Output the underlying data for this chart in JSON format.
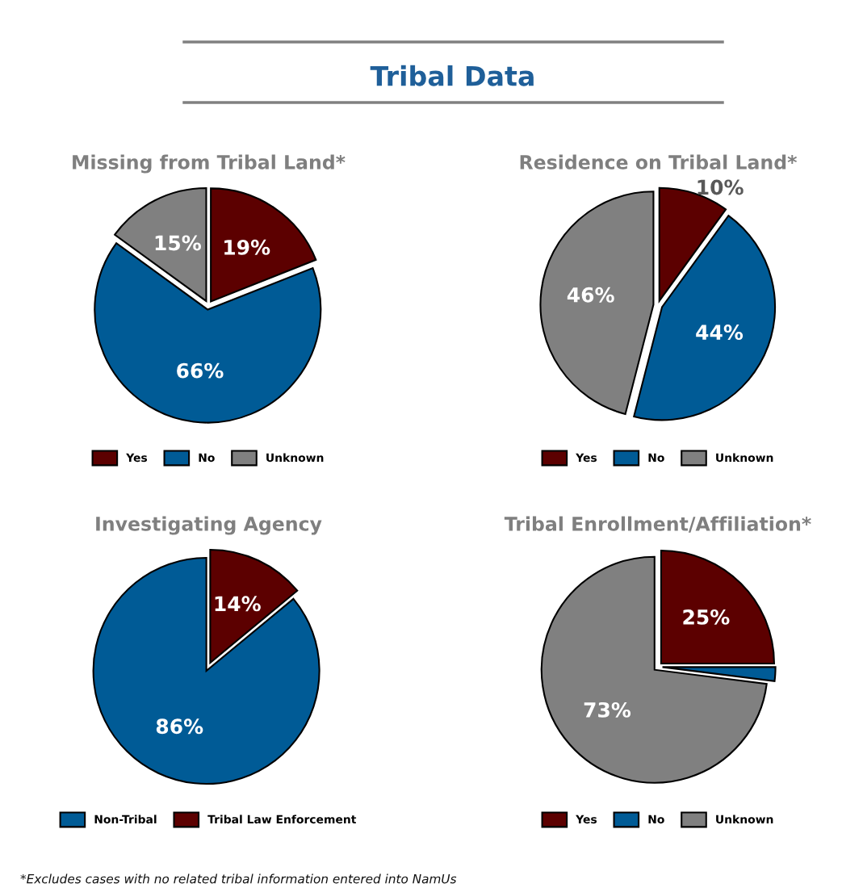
{
  "chart_data": [
    {
      "type": "other",
      "title": "Tribal Data",
      "annotations": [
        "*Excludes cases with no related tribal information entered into NamUs"
      ]
    },
    {
      "type": "pie",
      "title": "Missing from Tribal Land*",
      "categories": [
        "Yes",
        "No",
        "Unknown"
      ],
      "values": [
        19,
        66,
        15
      ],
      "colors": [
        "#5c0000",
        "#005b96",
        "#808080"
      ],
      "value_labels": [
        "19%",
        "66%",
        "15%"
      ],
      "legend": "bottom"
    },
    {
      "type": "pie",
      "title": "Residence on Tribal Land*",
      "categories": [
        "Yes",
        "No",
        "Unknown"
      ],
      "values": [
        10,
        44,
        46
      ],
      "colors": [
        "#5c0000",
        "#005b96",
        "#808080"
      ],
      "value_labels": [
        "10%",
        "44%",
        "46%"
      ],
      "legend": "bottom"
    },
    {
      "type": "pie",
      "title": "Investigating Agency",
      "categories": [
        "Non-Tribal",
        "Tribal Law Enforcement"
      ],
      "values": [
        86,
        14
      ],
      "colors": [
        "#005b96",
        "#5c0000"
      ],
      "value_labels": [
        "86%",
        "14%"
      ],
      "legend": "bottom"
    },
    {
      "type": "pie",
      "title": "Tribal Enrollment/Affiliation*",
      "categories": [
        "Yes",
        "No",
        "Unknown"
      ],
      "values": [
        25,
        2,
        73
      ],
      "colors": [
        "#5c0000",
        "#005b96",
        "#808080"
      ],
      "value_labels": [
        "25%",
        null,
        "73%"
      ],
      "legend": "bottom"
    }
  ]
}
